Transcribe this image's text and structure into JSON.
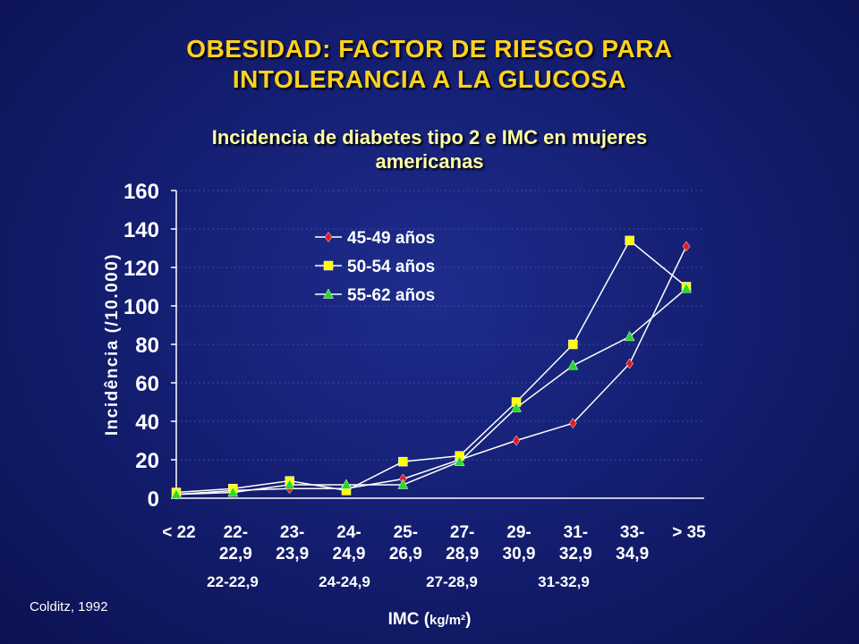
{
  "page": {
    "title_line1": "OBESIDAD: FACTOR DE RIESGO PARA",
    "title_line2": "INTOLERANCIA A LA GLUCOSA",
    "subtitle_line1": "Incidencia de diabetes tipo 2 e IMC en mujeres",
    "subtitle_line2": "americanas",
    "credit": "Colditz, 1992",
    "xlabel_main": "IMC (",
    "xlabel_unit": "kg/m²",
    "xlabel_close": ")",
    "extra_labels": [
      "22-22,9",
      "24-24,9",
      "27-28,9",
      "31-32,9"
    ]
  },
  "chart_data": {
    "type": "line",
    "ylabel": "Incidência (/10.000)",
    "xlabel": "IMC (kg/m²)",
    "ylim": [
      0,
      160
    ],
    "yticks": [
      0,
      20,
      40,
      60,
      80,
      100,
      120,
      140,
      160
    ],
    "categories": [
      [
        "< 22"
      ],
      [
        "22-",
        "22,9"
      ],
      [
        "23-",
        "23,9"
      ],
      [
        "24-",
        "24,9"
      ],
      [
        "25-",
        "26,9"
      ],
      [
        "27-",
        "28,9"
      ],
      [
        "29-",
        "30,9"
      ],
      [
        "31-",
        "32,9"
      ],
      [
        "33-",
        "34,9"
      ],
      [
        "> 35"
      ]
    ],
    "legend_position": "top-left",
    "series": [
      {
        "name": "45-49 años",
        "marker": "diamond",
        "color": "#e8191e",
        "values": [
          2,
          4,
          5,
          5,
          10,
          20,
          30,
          39,
          70,
          131
        ]
      },
      {
        "name": "50-54 años",
        "marker": "square",
        "color": "#ffff00",
        "values": [
          3,
          5,
          9,
          4,
          19,
          22,
          50,
          80,
          134,
          110
        ]
      },
      {
        "name": "55-62 años",
        "marker": "triangle",
        "color": "#22dd22",
        "values": [
          2,
          3,
          7,
          7,
          7,
          19,
          47,
          69,
          84,
          109
        ]
      }
    ]
  }
}
